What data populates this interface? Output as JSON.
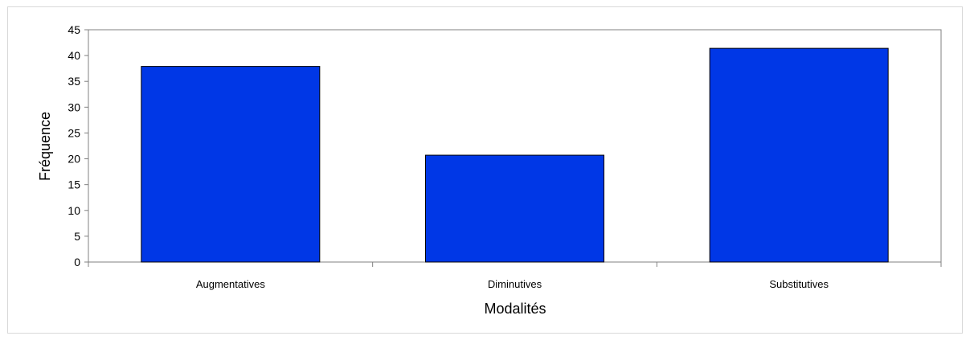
{
  "chart_data": {
    "type": "bar",
    "categories": [
      "Augmentatives",
      "Diminutives",
      "Substitutives"
    ],
    "values": [
      37.9,
      20.7,
      41.4
    ],
    "xlabel": "Modalités",
    "ylabel": "Fréquence",
    "ylim": [
      0,
      45
    ],
    "yticks": [
      "0",
      "5",
      "10",
      "15",
      "20",
      "25",
      "30",
      "35",
      "40",
      "45"
    ],
    "grid": false,
    "legend": "none",
    "bar_color": "#0037e6",
    "bar_edge_color": "#000000",
    "plot_border_color": "#808080"
  }
}
